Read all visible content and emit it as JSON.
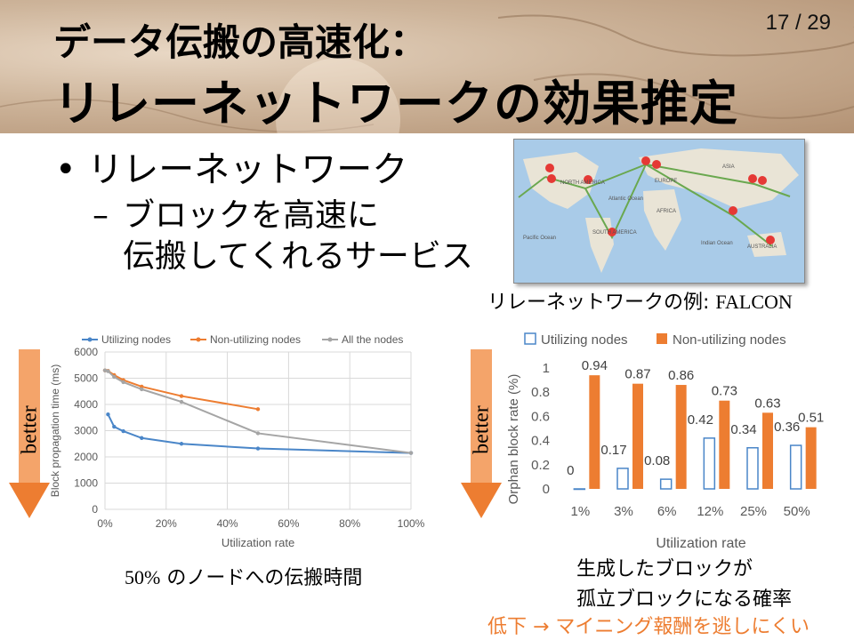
{
  "slide": {
    "page_number": "17 / 29",
    "title_line1": "データ伝搬の高速化：",
    "title_line2": "リレーネットワークの効果推定",
    "bullet": "リレーネットワーク",
    "sub_line1": "ブロックを高速に",
    "sub_line2": "伝搬してくれるサービス",
    "sub_dash": "–",
    "map_caption_jp": "リレーネットワークの例: ",
    "map_caption_name": "FALCON",
    "map_labels": {
      "asia": "ASIA",
      "north_america": "NORTH\nAMERICA",
      "europe": "EUROPE",
      "africa": "AFRICA",
      "south_america": "SOUTH\nAMERICA",
      "australia": "AUSTRALIA",
      "atlantic": "Atlantic\nOcean",
      "pacific": "Pacific\nOcean",
      "indian": "Indian\nOcean"
    },
    "better_label": "better",
    "caption_left_num": "50%",
    "caption_left_rest": " のノードへの伝搬時間",
    "caption_right_line1": "生成したブロックが",
    "caption_right_line2": "孤立ブロックになる確率",
    "footnote": "低下 → マイニング報酬を逃しにくい",
    "colors": {
      "blue": "#4a86c8",
      "orange": "#ed7d31",
      "gray": "#a5a5a5",
      "arrow": "#f4a46a"
    }
  },
  "chart_data": [
    {
      "type": "line",
      "xlabel": "Utilization rate",
      "ylabel": "Block propagation time (ms)",
      "xlim": [
        0,
        100
      ],
      "ylim": [
        0,
        6000
      ],
      "x_ticks": [
        "0%",
        "20%",
        "40%",
        "60%",
        "80%",
        "100%"
      ],
      "y_ticks": [
        "0",
        "1000",
        "2000",
        "3000",
        "4000",
        "5000",
        "6000"
      ],
      "grid": true,
      "legend": "top",
      "series": [
        {
          "name": "Utilizing nodes",
          "color": "#4a86c8",
          "x": [
            1,
            3,
            6,
            12,
            25,
            50,
            100
          ],
          "y": [
            3620,
            3150,
            2980,
            2720,
            2500,
            2320,
            2150
          ]
        },
        {
          "name": "Non-utilizing nodes",
          "color": "#ed7d31",
          "x": [
            0,
            1,
            3,
            6,
            12,
            25,
            50
          ],
          "y": [
            5300,
            5280,
            5120,
            4930,
            4680,
            4320,
            3820
          ]
        },
        {
          "name": "All the nodes",
          "color": "#a5a5a5",
          "x": [
            0,
            1,
            3,
            6,
            12,
            25,
            50,
            100
          ],
          "y": [
            5300,
            5270,
            5050,
            4850,
            4580,
            4100,
            2900,
            2150
          ]
        }
      ]
    },
    {
      "type": "bar",
      "xlabel": "Utilization rate",
      "ylabel": "Orphan block rate (%)",
      "ylim": [
        0,
        1
      ],
      "y_ticks": [
        "0",
        "0.2",
        "0.4",
        "0.6",
        "0.8",
        "1"
      ],
      "grid": false,
      "legend": "top",
      "categories": [
        "1%",
        "3%",
        "6%",
        "12%",
        "25%",
        "50%"
      ],
      "series": [
        {
          "name": "Utilizing nodes",
          "color": "#4a86c8",
          "values": [
            0,
            0.17,
            0.08,
            0.42,
            0.34,
            0.36
          ],
          "labels": [
            "0",
            "0.17",
            "0.08",
            "0.42",
            "0.34",
            "0.36"
          ]
        },
        {
          "name": "Non-utilizing nodes",
          "color": "#ed7d31",
          "values": [
            0.94,
            0.87,
            0.86,
            0.73,
            0.63,
            0.51
          ],
          "labels": [
            "0.94",
            "0.87",
            "0.86",
            "0.73",
            "0.63",
            "0.51"
          ]
        }
      ]
    }
  ]
}
